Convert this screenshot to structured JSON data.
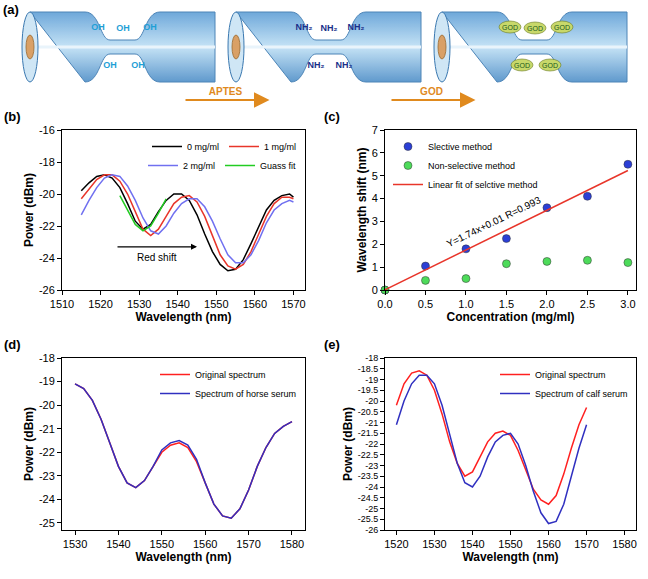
{
  "diagram": {
    "label": "(a)",
    "stages": [
      {
        "surface_group": "OH"
      },
      {
        "surface_group": "NH₂"
      },
      {
        "surface_group": "GOD"
      }
    ],
    "steps": [
      "APTES",
      "GOD"
    ]
  },
  "chart_data": [
    {
      "panel": "(b)",
      "type": "line",
      "x_label": "Wavelength (nm)",
      "y_label": "Power (dBm)",
      "xlim": [
        1510,
        1573
      ],
      "ylim": [
        -26,
        -16
      ],
      "xticks": [
        1510,
        1520,
        1530,
        1540,
        1550,
        1560,
        1570
      ],
      "yticks": [
        -26,
        -24,
        -22,
        -20,
        -18,
        -16
      ],
      "grid": false,
      "legend": "top-right",
      "series": [
        {
          "name": "0 mg/ml",
          "color": "#000000",
          "x": [
            1515,
            1517,
            1519,
            1521,
            1523,
            1525,
            1527,
            1529,
            1531,
            1533,
            1535,
            1537,
            1539,
            1541,
            1543,
            1545,
            1547,
            1549,
            1551,
            1553,
            1555,
            1557,
            1559,
            1561,
            1563,
            1565,
            1567,
            1569,
            1570
          ],
          "values": [
            -19.8,
            -19.3,
            -18.9,
            -18.8,
            -19.0,
            -19.6,
            -20.6,
            -21.7,
            -22.2,
            -21.9,
            -21.1,
            -20.4,
            -20.0,
            -20.0,
            -20.4,
            -21.3,
            -22.5,
            -23.6,
            -24.4,
            -24.8,
            -24.7,
            -24.1,
            -23.1,
            -22.0,
            -21.0,
            -20.4,
            -20.1,
            -20.0,
            -20.2
          ]
        },
        {
          "name": "1 mg/ml",
          "color": "#e8352a",
          "x": [
            1515,
            1517,
            1519,
            1521,
            1523,
            1525,
            1527,
            1529,
            1531,
            1533,
            1535,
            1537,
            1539,
            1541,
            1543,
            1545,
            1547,
            1549,
            1551,
            1553,
            1555,
            1557,
            1559,
            1561,
            1563,
            1565,
            1567,
            1569,
            1570
          ],
          "values": [
            -20.3,
            -19.7,
            -19.1,
            -18.8,
            -18.8,
            -19.2,
            -20.0,
            -21.1,
            -22.2,
            -22.6,
            -22.2,
            -21.4,
            -20.6,
            -20.2,
            -20.1,
            -20.5,
            -21.4,
            -22.6,
            -23.8,
            -24.5,
            -24.7,
            -24.4,
            -23.6,
            -22.5,
            -21.4,
            -20.6,
            -20.2,
            -20.2,
            -20.3
          ]
        },
        {
          "name": "2 mg/ml",
          "color": "#7070f0",
          "x": [
            1515,
            1517,
            1519,
            1521,
            1523,
            1525,
            1527,
            1529,
            1531,
            1533,
            1535,
            1537,
            1539,
            1541,
            1543,
            1545,
            1547,
            1549,
            1551,
            1553,
            1555,
            1557,
            1559,
            1561,
            1563,
            1565,
            1567,
            1569,
            1570
          ],
          "values": [
            -21.3,
            -20.4,
            -19.6,
            -19.0,
            -18.8,
            -18.9,
            -19.5,
            -20.4,
            -21.5,
            -22.3,
            -22.5,
            -22.0,
            -21.2,
            -20.6,
            -20.3,
            -20.3,
            -20.8,
            -21.7,
            -22.8,
            -23.8,
            -24.3,
            -24.3,
            -23.8,
            -22.9,
            -21.8,
            -21.0,
            -20.6,
            -20.4,
            -20.5
          ]
        },
        {
          "name": "Guass fit",
          "color": "#22cc22",
          "x": [
            1525,
            1527,
            1529,
            1531,
            1533,
            1535,
            1537
          ],
          "values": [
            -20.1,
            -21.0,
            -21.9,
            -22.3,
            -22.0,
            -21.2,
            -20.3
          ]
        }
      ],
      "annotations": [
        {
          "text": "Red shift",
          "x_from": 1524,
          "x_to": 1545,
          "y": -23.3
        }
      ]
    },
    {
      "panel": "(c)",
      "type": "scatter",
      "x_label": "Concentration (mg/ml)",
      "y_label": "Wavelength shift (nm)",
      "xlim": [
        0,
        3.1
      ],
      "ylim": [
        0,
        7
      ],
      "xticks": [
        {
          "value": 0,
          "label": "0.0"
        },
        0.5,
        {
          "value": 1,
          "label": "1.0"
        },
        1.5,
        {
          "value": 2,
          "label": "2.0"
        },
        2.5,
        {
          "value": 3,
          "label": "3.0"
        }
      ],
      "yticks": [
        0,
        1,
        2,
        3,
        4,
        5,
        6,
        7
      ],
      "grid": false,
      "legend": "top-left",
      "series": [
        {
          "name": "Slective method",
          "type": "scatter",
          "marker": "circle",
          "color": "#2b3fd6",
          "x": [
            0,
            0.5,
            1,
            1.5,
            2,
            2.5,
            3
          ],
          "values": [
            0,
            1.05,
            1.8,
            2.25,
            3.6,
            4.1,
            5.5
          ]
        },
        {
          "name": "Non-selective method",
          "type": "scatter",
          "marker": "circle",
          "color": "#4ddb5a",
          "x": [
            0,
            0.5,
            1,
            1.5,
            2,
            2.5,
            3
          ],
          "values": [
            0,
            0.42,
            0.5,
            1.15,
            1.25,
            1.3,
            1.2
          ]
        },
        {
          "name": "Linear fit of selctive method",
          "type": "line",
          "color": "#e8352a",
          "x": [
            0,
            3
          ],
          "values": [
            0.01,
            5.23
          ]
        }
      ],
      "annotations": [
        {
          "text": "Y=1.74x+0.01 R=0.993",
          "x": 1.35,
          "y": 3.0
        }
      ]
    },
    {
      "panel": "(d)",
      "type": "line",
      "x_label": "Wavelength (nm)",
      "y_label": "Power (dBm)",
      "xlim": [
        1527,
        1583
      ],
      "ylim": [
        -25.3,
        -18
      ],
      "xticks": [
        1530,
        1540,
        1550,
        1560,
        1570,
        1580
      ],
      "yticks": [
        -25,
        -24,
        -23,
        -22,
        -21,
        -20,
        -19,
        -18
      ],
      "grid": false,
      "legend": "top-right",
      "series": [
        {
          "name": "Original spectrum",
          "color": "#ff2020",
          "x": [
            1530,
            1532,
            1534,
            1536,
            1538,
            1540,
            1542,
            1544,
            1546,
            1548,
            1550,
            1552,
            1554,
            1556,
            1558,
            1560,
            1562,
            1564,
            1566,
            1568,
            1570,
            1572,
            1574,
            1576,
            1578,
            1580
          ],
          "values": [
            -19.1,
            -19.3,
            -19.8,
            -20.6,
            -21.6,
            -22.6,
            -23.3,
            -23.5,
            -23.2,
            -22.6,
            -22.0,
            -21.7,
            -21.6,
            -21.8,
            -22.4,
            -23.3,
            -24.2,
            -24.7,
            -24.8,
            -24.4,
            -23.6,
            -22.6,
            -21.8,
            -21.2,
            -20.9,
            -20.7
          ]
        },
        {
          "name": "Spectrum of horse serum",
          "color": "#3030c0",
          "x": [
            1530,
            1532,
            1534,
            1536,
            1538,
            1540,
            1542,
            1544,
            1546,
            1548,
            1550,
            1552,
            1554,
            1556,
            1558,
            1560,
            1562,
            1564,
            1566,
            1568,
            1570,
            1572,
            1574,
            1576,
            1578,
            1580
          ],
          "values": [
            -19.1,
            -19.3,
            -19.8,
            -20.6,
            -21.6,
            -22.6,
            -23.3,
            -23.5,
            -23.2,
            -22.6,
            -21.9,
            -21.6,
            -21.5,
            -21.7,
            -22.3,
            -23.3,
            -24.2,
            -24.7,
            -24.8,
            -24.4,
            -23.6,
            -22.6,
            -21.8,
            -21.2,
            -20.9,
            -20.7
          ]
        }
      ]
    },
    {
      "panel": "(e)",
      "type": "line",
      "x_label": "Wavelength (nm)",
      "y_label": "Power (dBm)",
      "xlim": [
        1517,
        1583
      ],
      "ylim": [
        -26,
        -18
      ],
      "xticks": [
        1520,
        1530,
        1540,
        1550,
        1560,
        1570,
        1580
      ],
      "yticks": [
        -26,
        -25.5,
        -25,
        -24.5,
        -24,
        -23.5,
        -23,
        -22.5,
        -22,
        -21.5,
        -21,
        -20.5,
        -20,
        -19.5,
        -19,
        -18.5,
        -18
      ],
      "grid": false,
      "legend": "top-right",
      "series": [
        {
          "name": "Original spectrum",
          "color": "#ff2020",
          "x": [
            1520,
            1522,
            1524,
            1526,
            1528,
            1530,
            1532,
            1534,
            1536,
            1538,
            1540,
            1542,
            1544,
            1546,
            1548,
            1550,
            1552,
            1554,
            1556,
            1558,
            1560,
            1562,
            1564,
            1566,
            1568,
            1570
          ],
          "values": [
            -20.2,
            -19.2,
            -18.7,
            -18.6,
            -18.8,
            -19.5,
            -20.6,
            -21.9,
            -22.9,
            -23.5,
            -23.3,
            -22.6,
            -21.9,
            -21.5,
            -21.4,
            -21.6,
            -22.3,
            -23.2,
            -24.1,
            -24.6,
            -24.8,
            -24.4,
            -23.4,
            -22.2,
            -21.1,
            -20.3
          ]
        },
        {
          "name": "Spectrum of calf serum",
          "color": "#3030c0",
          "x": [
            1520,
            1522,
            1524,
            1526,
            1528,
            1530,
            1532,
            1534,
            1536,
            1538,
            1540,
            1542,
            1544,
            1546,
            1548,
            1550,
            1552,
            1554,
            1556,
            1558,
            1560,
            1562,
            1564,
            1566,
            1568,
            1570
          ],
          "values": [
            -21.1,
            -20.0,
            -19.2,
            -18.8,
            -18.8,
            -19.2,
            -20.2,
            -21.6,
            -22.9,
            -23.8,
            -24.0,
            -23.5,
            -22.6,
            -21.9,
            -21.6,
            -21.5,
            -22.0,
            -23.0,
            -24.2,
            -25.2,
            -25.7,
            -25.6,
            -24.8,
            -23.5,
            -22.2,
            -21.1
          ]
        }
      ]
    }
  ]
}
